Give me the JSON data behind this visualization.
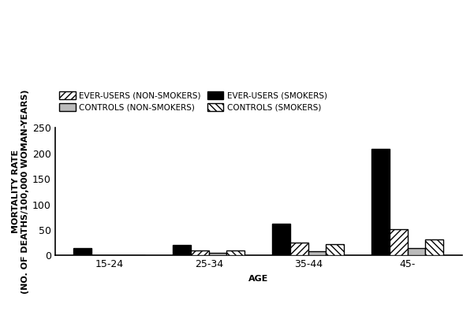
{
  "categories": [
    "15-24",
    "25-34",
    "35-44",
    "45-"
  ],
  "series": {
    "ever_users_smokers": [
      14,
      21,
      63,
      208
    ],
    "ever_users_nonsmokers": [
      0,
      10,
      26,
      51
    ],
    "controls_nonsmokers": [
      0,
      6,
      8,
      14
    ],
    "controls_smokers": [
      0,
      10,
      22,
      32
    ]
  },
  "legend_labels": [
    "EVER-USERS (NON-SMOKERS)",
    "CONTROLS (NON-SMOKERS)",
    "EVER-USERS (SMOKERS)",
    "CONTROLS (SMOKERS)"
  ],
  "xlabel": "AGE",
  "ylabel": "MORTALITY RATE\n(NO. OF DEATHS/100,000 WOMAN-YEARS)",
  "ylim": [
    0,
    250
  ],
  "yticks": [
    0,
    50,
    100,
    150,
    200,
    250
  ],
  "bar_width": 0.18,
  "background_color": "#ffffff",
  "edge_color": "#000000",
  "color_eu_s": "#000000",
  "color_eu_ns": "#ffffff",
  "color_ctrl_ns": "#bbbbbb",
  "color_ctrl_s": "#ffffff",
  "hatch_eu_s": "",
  "hatch_eu_ns": "////",
  "hatch_ctrl_ns": "",
  "hatch_ctrl_s": "\\\\\\\\",
  "fontsize_legend": 7.5,
  "fontsize_axis_label": 8,
  "fontsize_ticks": 9
}
